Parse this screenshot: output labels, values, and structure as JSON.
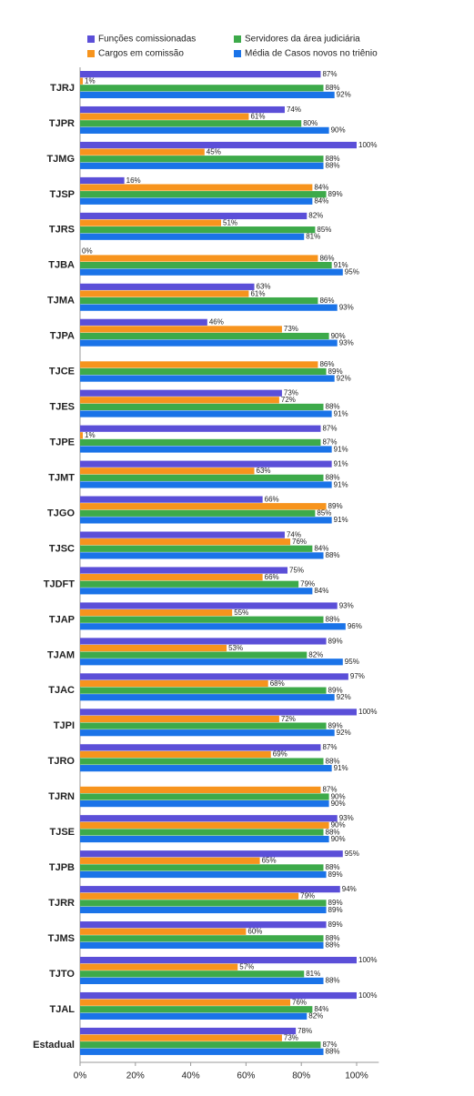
{
  "chart_data": {
    "type": "hbar",
    "categories": [
      "TJRJ",
      "TJPR",
      "TJMG",
      "TJSP",
      "TJRS",
      "TJBA",
      "TJMA",
      "TJPA",
      "TJCE",
      "TJES",
      "TJPE",
      "TJMT",
      "TJGO",
      "TJSC",
      "TJDFT",
      "TJAP",
      "TJAM",
      "TJAC",
      "TJPI",
      "TJRO",
      "TJRN",
      "TJSE",
      "TJPB",
      "TJRR",
      "TJMS",
      "TJTO",
      "TJAL",
      "Estadual"
    ],
    "series": [
      {
        "name": "Funções comissionadas",
        "color": "#5b4fd8",
        "values": [
          87,
          74,
          100,
          16,
          82,
          0,
          63,
          46,
          null,
          73,
          87,
          91,
          66,
          74,
          75,
          93,
          89,
          97,
          100,
          87,
          null,
          93,
          95,
          94,
          89,
          100,
          100,
          78
        ],
        "value_labels": [
          "87%",
          "74%",
          "100%",
          "16%",
          "82%",
          "0%",
          "63%",
          "46%",
          null,
          "73%",
          "87%",
          "91%",
          "66%",
          "74%",
          "75%",
          "93%",
          "89%",
          "97%",
          "100%",
          "87%",
          null,
          "93%",
          "95%",
          "94%",
          "89%",
          "100%",
          "100%",
          "78%"
        ]
      },
      {
        "name": "Cargos em comissão",
        "color": "#f7941d",
        "values": [
          1,
          61,
          45,
          84,
          51,
          86,
          61,
          73,
          86,
          72,
          1,
          63,
          89,
          76,
          66,
          55,
          53,
          68,
          72,
          69,
          87,
          90,
          65,
          79,
          60,
          57,
          76,
          73
        ],
        "value_labels": [
          "1%",
          "61%",
          "45%",
          "84%",
          "51%",
          "86%",
          "61%",
          "73%",
          "86%",
          "72%",
          "1%",
          "63%",
          "89%",
          "76%",
          "66%",
          "55%",
          "53%",
          "68%",
          "72%",
          "69%",
          "87%",
          "90%",
          "65%",
          "79%",
          "60%",
          "57%",
          "76%",
          "73%"
        ]
      },
      {
        "name": "Servidores da área judiciária",
        "color": "#3daa4a",
        "values": [
          88,
          80,
          88,
          89,
          85,
          91,
          86,
          90,
          89,
          88,
          87,
          88,
          85,
          84,
          79,
          88,
          82,
          89,
          89,
          88,
          90,
          88,
          88,
          89,
          88,
          81,
          84,
          87
        ],
        "value_labels": [
          "88%",
          "80%",
          "88%",
          "89%",
          "85%",
          "91%",
          "86%",
          "90%",
          "89%",
          "88%",
          "87%",
          "88%",
          "85%",
          "84%",
          "79%",
          "88%",
          "82%",
          "89%",
          "89%",
          "88%",
          "90%",
          "88%",
          "88%",
          "89%",
          "88%",
          "81%",
          "84%",
          "87%"
        ]
      },
      {
        "name": "Média de Casos novos no triênio",
        "color": "#1a73e8",
        "values": [
          92,
          90,
          88,
          84,
          81,
          95,
          93,
          93,
          92,
          91,
          91,
          91,
          91,
          88,
          84,
          96,
          95,
          92,
          92,
          91,
          90,
          90,
          89,
          89,
          88,
          88,
          82,
          88
        ],
        "value_labels": [
          "92%",
          "90%",
          "88%",
          "84%",
          "81%",
          "95%",
          "93%",
          "93%",
          "92%",
          "91%",
          "91%",
          "91%",
          "91%",
          "88%",
          "84%",
          "96%",
          "95%",
          "92%",
          "92%",
          "91%",
          "90%",
          "90%",
          "89%",
          "89%",
          "88%",
          "88%",
          "82%",
          "88%"
        ]
      }
    ],
    "xlim": [
      0,
      108
    ],
    "xticks": [
      {
        "value": 0,
        "label": "0%"
      },
      {
        "value": 20,
        "label": "20%"
      },
      {
        "value": 40,
        "label": "40%"
      },
      {
        "value": 60,
        "label": "60%"
      },
      {
        "value": 80,
        "label": "80%"
      },
      {
        "value": 100,
        "label": "100%"
      }
    ]
  }
}
